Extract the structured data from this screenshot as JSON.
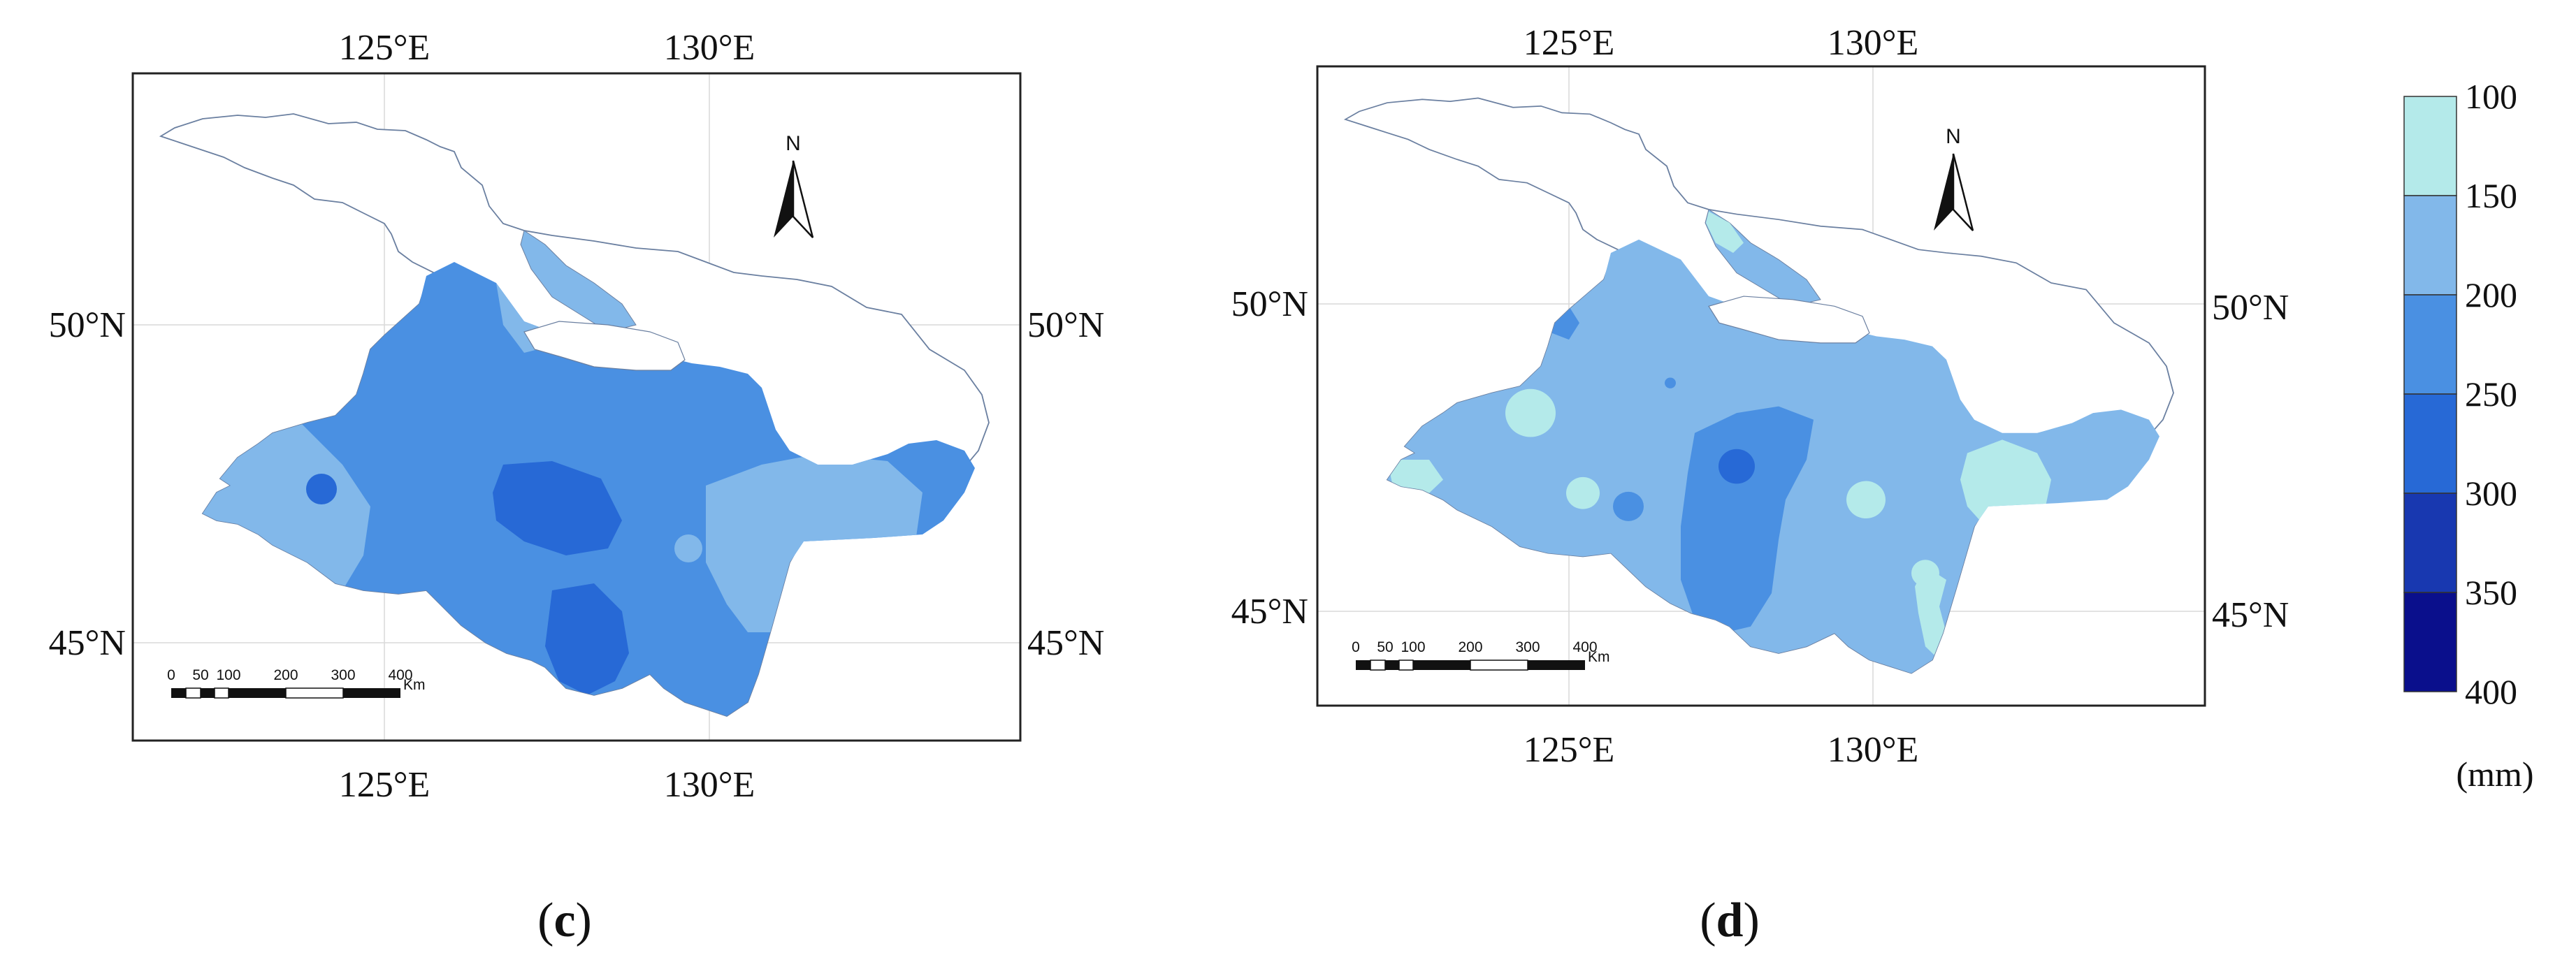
{
  "panels": [
    {
      "id": "c",
      "label": "(c)",
      "label_letter": "c",
      "lon_ticks": [
        "125°E",
        "130°E"
      ],
      "lat_ticks": [
        "50°N",
        "45°N"
      ],
      "north_label": "N",
      "scale_ticks": [
        "0",
        "50",
        "100",
        "200",
        "300",
        "400"
      ],
      "scale_unit": "Km",
      "zones": [
        {
          "class": "200–250",
          "color": "#4a90e2"
        },
        {
          "class": "150–200",
          "color": "#82b8ea"
        },
        {
          "class": "250–300",
          "color": "#2769d6"
        }
      ]
    },
    {
      "id": "d",
      "label": "(d)",
      "label_letter": "d",
      "lon_ticks": [
        "125°E",
        "130°E"
      ],
      "lat_ticks": [
        "50°N",
        "45°N"
      ],
      "north_label": "N",
      "scale_ticks": [
        "0",
        "50",
        "100",
        "200",
        "300",
        "400"
      ],
      "scale_unit": "Km",
      "zones": [
        {
          "class": "150–200",
          "color": "#82b8ea"
        },
        {
          "class": "100–150",
          "color": "#b4eaea"
        },
        {
          "class": "200–250",
          "color": "#4a90e2"
        },
        {
          "class": "250–300",
          "color": "#2769d6"
        }
      ]
    }
  ],
  "legend": {
    "ticks": [
      "100",
      "150",
      "200",
      "250",
      "300",
      "350",
      "400"
    ],
    "colors": [
      "#b4eaea",
      "#82b8ea",
      "#4a90e2",
      "#2769d6",
      "#1838b0",
      "#0a0f8c"
    ],
    "unit": "(mm)"
  }
}
